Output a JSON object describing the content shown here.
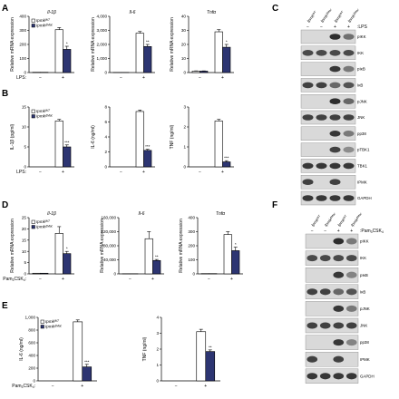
{
  "colors": {
    "wt": "#ffffff",
    "mko": "#2d3572",
    "axis": "#000000",
    "band_bg": "#d9d9d9",
    "band": "#1a1a1a"
  },
  "icons": {
    "hatch": "dash-icon"
  },
  "panels": {
    "A": {
      "label": "A"
    },
    "B": {
      "label": "B"
    },
    "C": {
      "label": "C"
    },
    "D": {
      "label": "D"
    },
    "E": {
      "label": "E"
    },
    "F": {
      "label": "F"
    }
  },
  "legend": {
    "wt": "Ipmk",
    "wt_sup": "WT",
    "ko": "Ipmk",
    "ko_sup": "ΔMac"
  },
  "stim": {
    "lps": "LPS:",
    "pam": "Pam",
    "pam_sub1": "3",
    "pam_mid": "CSK",
    "pam_sub2": "4",
    "pam_colon": ":",
    "minus": "−",
    "plus": "+"
  },
  "chart_data": [
    {
      "id": "A1",
      "type": "bar",
      "title": "Il-1β",
      "ylabel": "Relative mRNA expression",
      "categories": [
        "−",
        "+"
      ],
      "ylim": [
        0,
        400
      ],
      "yticks": [
        0,
        100,
        200,
        300,
        400
      ],
      "series": [
        {
          "name": "Ipmk WT",
          "values": [
            2,
            305
          ]
        },
        {
          "name": "Ipmk ΔMac",
          "values": [
            2,
            165
          ]
        }
      ],
      "errors": [
        [
          0,
          15
        ],
        [
          0,
          22
        ]
      ],
      "sig": [
        "",
        "*"
      ]
    },
    {
      "id": "A2",
      "type": "bar",
      "title": "Il-6",
      "ylabel": "Relative mRNA expression",
      "categories": [
        "−",
        "+"
      ],
      "ylim": [
        0,
        4000
      ],
      "yticks": [
        0,
        1000,
        2000,
        3000,
        4000
      ],
      "series": [
        {
          "values": [
            10,
            2800
          ]
        },
        {
          "values": [
            10,
            1850
          ]
        }
      ],
      "errors": [
        [
          0,
          120
        ],
        [
          0,
          150
        ]
      ],
      "sig": [
        "",
        "**"
      ]
    },
    {
      "id": "A3",
      "type": "bar",
      "title": "Tnfα",
      "ylabel": "Relative mRNA expression",
      "categories": [
        "−",
        "+"
      ],
      "ylim": [
        0,
        40
      ],
      "yticks": [
        0,
        10,
        20,
        30,
        40
      ],
      "series": [
        {
          "values": [
            1,
            29
          ]
        },
        {
          "values": [
            1,
            18
          ]
        }
      ],
      "errors": [
        [
          0.2,
          1.5
        ],
        [
          0.2,
          2
        ]
      ],
      "sig": [
        "",
        "*"
      ]
    },
    {
      "id": "B1",
      "type": "bar",
      "title": "",
      "ylabel": "IL-1β (pg/ml)",
      "categories": [
        "−",
        "+"
      ],
      "ylim": [
        0,
        15
      ],
      "yticks": [
        0,
        5,
        10,
        15
      ],
      "series": [
        {
          "values": [
            0,
            11.5
          ]
        },
        {
          "values": [
            0,
            5
          ]
        }
      ],
      "errors": [
        [
          0,
          0.4
        ],
        [
          0,
          0.5
        ]
      ],
      "sig": [
        "",
        "***"
      ]
    },
    {
      "id": "B2",
      "type": "bar",
      "title": "",
      "ylabel": "IL-6 (ng/ml)",
      "categories": [
        "−",
        "+"
      ],
      "ylim": [
        0,
        8
      ],
      "yticks": [
        0,
        2,
        4,
        6,
        8
      ],
      "series": [
        {
          "values": [
            0,
            7.4
          ]
        },
        {
          "values": [
            0,
            2.2
          ]
        }
      ],
      "errors": [
        [
          0,
          0.2
        ],
        [
          0,
          0.15
        ]
      ],
      "sig": [
        "",
        "***"
      ]
    },
    {
      "id": "B3",
      "type": "bar",
      "title": "",
      "ylabel": "TNF (ng/ml)",
      "categories": [
        "−",
        "+"
      ],
      "ylim": [
        0,
        3
      ],
      "yticks": [
        0,
        1,
        2,
        3
      ],
      "series": [
        {
          "values": [
            0,
            2.3
          ]
        },
        {
          "values": [
            0,
            0.25
          ]
        }
      ],
      "errors": [
        [
          0,
          0.08
        ],
        [
          0,
          0.06
        ]
      ],
      "sig": [
        "",
        "***"
      ]
    },
    {
      "id": "D1",
      "type": "bar",
      "title": "Il-1β",
      "ylabel": "Relative mRNA expression",
      "categories": [
        "−",
        "+"
      ],
      "ylim": [
        0,
        25
      ],
      "yticks": [
        0,
        5,
        10,
        15,
        20,
        25
      ],
      "series": [
        {
          "values": [
            0.3,
            18
          ]
        },
        {
          "values": [
            0.3,
            9
          ]
        }
      ],
      "errors": [
        [
          0,
          3
        ],
        [
          0,
          1
        ]
      ],
      "sig": [
        "",
        "*"
      ]
    },
    {
      "id": "D2",
      "type": "bar",
      "title": "Il-6",
      "ylabel": "Relative mRNA expression",
      "categories": [
        "−",
        "+"
      ],
      "ylim": [
        0,
        160000
      ],
      "yticks": [
        0,
        40000,
        80000,
        120000,
        160000
      ],
      "series": [
        {
          "values": [
            500,
            100000
          ]
        },
        {
          "values": [
            500,
            38000
          ]
        }
      ],
      "errors": [
        [
          0,
          20000
        ],
        [
          0,
          3000
        ]
      ],
      "sig": [
        "",
        "**"
      ]
    },
    {
      "id": "D3",
      "type": "bar",
      "title": "Tnfα",
      "ylabel": "Relative mRNA expression",
      "categories": [
        "−",
        "+"
      ],
      "ylim": [
        0,
        400
      ],
      "yticks": [
        0,
        100,
        200,
        300,
        400
      ],
      "series": [
        {
          "values": [
            2,
            280
          ]
        },
        {
          "values": [
            2,
            165
          ]
        }
      ],
      "errors": [
        [
          0,
          20
        ],
        [
          0,
          25
        ]
      ],
      "sig": [
        "",
        "*"
      ]
    },
    {
      "id": "E1",
      "type": "bar",
      "title": "",
      "ylabel": "IL-6 (ng/ml)",
      "categories": [
        "−",
        "+"
      ],
      "ylim": [
        0,
        1000
      ],
      "yticks": [
        0,
        200,
        400,
        600,
        800,
        1000
      ],
      "series": [
        {
          "values": [
            0,
            930
          ]
        },
        {
          "values": [
            0,
            220
          ]
        }
      ],
      "errors": [
        [
          0,
          30
        ],
        [
          0,
          40
        ]
      ],
      "sig": [
        "",
        "***"
      ]
    },
    {
      "id": "E2",
      "type": "bar",
      "title": "",
      "ylabel": "TNF (ng/ml)",
      "categories": [
        "−",
        "+"
      ],
      "ylim": [
        0,
        4
      ],
      "yticks": [
        0,
        1,
        2,
        3,
        4
      ],
      "series": [
        {
          "values": [
            0,
            3.1
          ]
        },
        {
          "values": [
            0,
            1.85
          ]
        }
      ],
      "errors": [
        [
          0,
          0.15
        ],
        [
          0,
          0.1
        ]
      ],
      "sig": [
        "",
        "**"
      ]
    }
  ],
  "blots": {
    "C": {
      "genotype_labels": [
        {
          "base": "Ipmk",
          "sup": "WT"
        },
        {
          "base": "Ipmk",
          "sup": "ΔMac"
        },
        {
          "base": "Ipmk",
          "sup": "WT"
        },
        {
          "base": "Ipmk",
          "sup": "ΔMac"
        }
      ],
      "treatment_label": ":LPS",
      "treatment_marks": [
        "−",
        "−",
        "+",
        "+"
      ],
      "rows": [
        {
          "label": "pIKK",
          "intensity": [
            0.05,
            0.05,
            0.9,
            0.55
          ]
        },
        {
          "label": "IKK",
          "intensity": [
            0.75,
            0.75,
            0.75,
            0.75
          ]
        },
        {
          "label": "pIκB",
          "intensity": [
            0.05,
            0.05,
            0.85,
            0.5
          ]
        },
        {
          "label": "IκB",
          "intensity": [
            0.8,
            0.8,
            0.6,
            0.7
          ]
        },
        {
          "label": "pJNK",
          "intensity": [
            0.05,
            0.05,
            0.9,
            0.6
          ]
        },
        {
          "label": "JNK",
          "intensity": [
            0.8,
            0.8,
            0.8,
            0.8
          ]
        },
        {
          "label": "pp38",
          "intensity": [
            0.05,
            0.05,
            0.85,
            0.5
          ]
        },
        {
          "label": "pTBK1",
          "intensity": [
            0.05,
            0.05,
            0.8,
            0.4
          ]
        },
        {
          "label": "TBK1",
          "intensity": [
            0.85,
            0.85,
            0.85,
            0.85
          ]
        },
        {
          "label": "IPMK",
          "intensity": [
            0.8,
            0.05,
            0.8,
            0.05
          ]
        },
        {
          "label": "GAPDH",
          "intensity": [
            0.85,
            0.85,
            0.85,
            0.85
          ]
        }
      ]
    },
    "F": {
      "genotype_labels": [
        {
          "base": "Ipmk",
          "sup": "WT"
        },
        {
          "base": "Ipmk",
          "sup": "ΔMac"
        },
        {
          "base": "Ipmk",
          "sup": "WT"
        },
        {
          "base": "Ipmk",
          "sup": "ΔMac"
        }
      ],
      "treatment_marks": [
        "−",
        "−",
        "+",
        "+"
      ],
      "rows": [
        {
          "label": "pIKK",
          "intensity": [
            0.05,
            0.05,
            0.9,
            0.5
          ]
        },
        {
          "label": "IKK",
          "intensity": [
            0.75,
            0.75,
            0.75,
            0.75
          ]
        },
        {
          "label": "pIκB",
          "intensity": [
            0.05,
            0.05,
            0.85,
            0.45
          ]
        },
        {
          "label": "IκB",
          "intensity": [
            0.8,
            0.8,
            0.6,
            0.7
          ]
        },
        {
          "label": "pJNK",
          "intensity": [
            0.05,
            0.05,
            0.85,
            0.5
          ]
        },
        {
          "label": "JNK",
          "intensity": [
            0.8,
            0.8,
            0.8,
            0.8
          ]
        },
        {
          "label": "pp38",
          "intensity": [
            0.05,
            0.05,
            0.85,
            0.45
          ]
        },
        {
          "label": "IPMK",
          "intensity": [
            0.8,
            0.05,
            0.8,
            0.05
          ]
        },
        {
          "label": "GAPDH",
          "intensity": [
            0.85,
            0.85,
            0.85,
            0.85
          ]
        }
      ]
    }
  }
}
